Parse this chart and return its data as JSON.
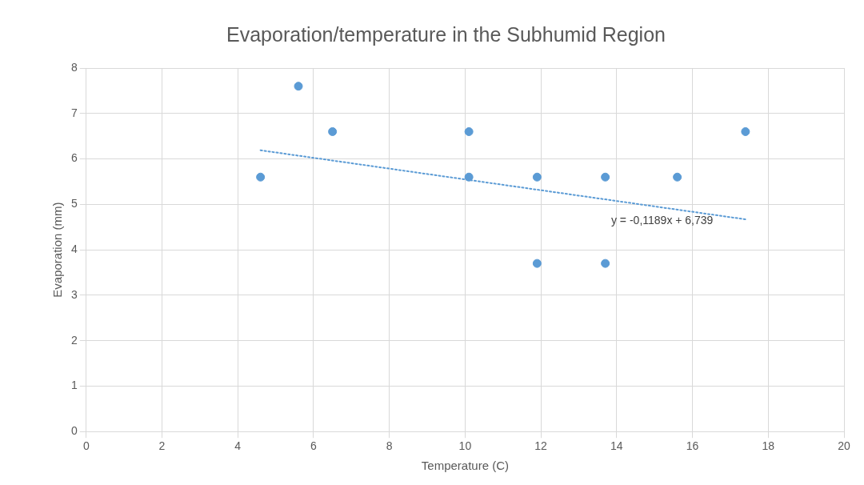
{
  "chart_data": {
    "type": "scatter",
    "title": "Evaporation/temperature in the Subhumid Region",
    "xlabel": "Temperature (C)",
    "ylabel": "Evaporation (mm)",
    "x": [
      4.6,
      5.6,
      6.5,
      10.1,
      10.1,
      11.9,
      11.9,
      13.7,
      13.7,
      15.6,
      17.4
    ],
    "series": [
      {
        "type": "scatter",
        "color": "#5b9bd5",
        "marker": "circle",
        "values": [
          5.6,
          7.6,
          6.6,
          6.6,
          5.6,
          5.6,
          3.7,
          5.6,
          3.7,
          5.6,
          6.6
        ]
      },
      {
        "type": "line",
        "color": "#5b9bd5",
        "line_style": "dotted",
        "marker": "none",
        "x": [
          4.6,
          17.4
        ],
        "values": [
          6.19,
          4.67
        ]
      }
    ],
    "annotations": [
      "y = -0,1189x + 6,739"
    ],
    "xlim": [
      0,
      20
    ],
    "xticks": [
      0,
      2,
      4,
      6,
      8,
      10,
      12,
      14,
      16,
      18,
      20
    ],
    "ylim": [
      0,
      8
    ],
    "yticks": [
      0,
      1,
      2,
      3,
      4,
      5,
      6,
      7,
      8
    ],
    "grid": true,
    "legend": false
  }
}
